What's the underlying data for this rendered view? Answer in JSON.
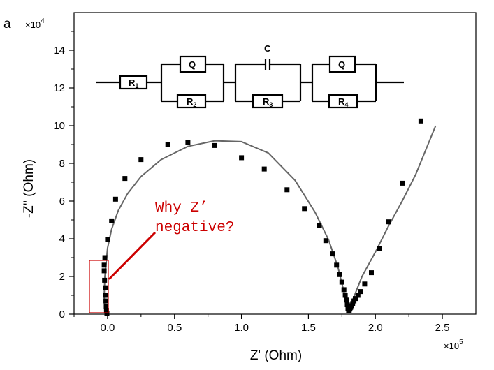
{
  "panel_label": "a",
  "annotation": {
    "line1": "Why Z’",
    "line2": "negative?",
    "color": "#cc0000"
  },
  "circuit": {
    "r1_main": "R",
    "r1_sub": "1",
    "q1": "Q",
    "r2_main": "R",
    "r2_sub": "2",
    "c": "C",
    "r3_main": "R",
    "r3_sub": "3",
    "q2": "Q",
    "r4_main": "R",
    "r4_sub": "4"
  },
  "chart_data": {
    "type": "scatter",
    "xlabel": "Z' (Ohm)",
    "ylabel": "-Z'' (Ohm)",
    "x_multiplier": "×10",
    "x_multiplier_exp": "5",
    "y_multiplier": "×10",
    "y_multiplier_exp": "4",
    "xlim": [
      -25000,
      275000
    ],
    "ylim": [
      0,
      160000
    ],
    "xticks": [
      0,
      50000,
      100000,
      150000,
      200000,
      250000
    ],
    "xtick_labels": [
      "0.0",
      "0.5",
      "1.0",
      "1.5",
      "2.0",
      "2.5"
    ],
    "yticks": [
      0,
      20000,
      40000,
      60000,
      80000,
      100000,
      120000,
      140000
    ],
    "ytick_labels": [
      "0",
      "2",
      "4",
      "6",
      "8",
      "10",
      "12",
      "14"
    ],
    "series": [
      {
        "kind": "markers",
        "color": "#000000",
        "x": [
          -500,
          -800,
          -1000,
          -1200,
          -1500,
          -1800,
          -2200,
          -2500,
          -2500,
          -2000,
          0,
          3000,
          6000,
          13000,
          25000,
          45000,
          60000,
          80000,
          100000,
          117000,
          134000,
          147000,
          158000,
          163000,
          168000,
          171000,
          173500,
          175000,
          176500,
          177500,
          178500,
          179000,
          179500,
          180000,
          180500,
          181000,
          181500,
          182000,
          183000,
          184000,
          185000,
          187000,
          189000,
          192000,
          197000,
          203000,
          210000,
          220000,
          234000
        ],
        "y": [
          300,
          2000,
          4000,
          7000,
          10000,
          14000,
          18000,
          23000,
          26000,
          30000,
          39500,
          49500,
          61000,
          72000,
          82000,
          90000,
          91000,
          89500,
          83000,
          77000,
          66000,
          56000,
          47000,
          39000,
          32000,
          26000,
          21000,
          17000,
          13000,
          10000,
          7500,
          5000,
          3000,
          2000,
          2200,
          2800,
          3600,
          4500,
          5600,
          7000,
          8300,
          10000,
          12000,
          16000,
          22000,
          35000,
          49000,
          69500,
          102500
        ]
      },
      {
        "kind": "fit-line",
        "color": "#666666",
        "x": [
          -2000,
          -2500,
          -2000,
          0,
          3000,
          8000,
          15000,
          25000,
          40000,
          60000,
          80000,
          100000,
          120000,
          140000,
          155000,
          165000,
          172000,
          176500,
          178800,
          179800,
          183000,
          190000,
          200000,
          210000,
          220000,
          230000,
          245000
        ],
        "y": [
          0,
          10000,
          20000,
          35000,
          45000,
          55000,
          64000,
          73000,
          82000,
          89000,
          92000,
          91500,
          85500,
          71000,
          54000,
          39500,
          25000,
          12000,
          4000,
          1200,
          7500,
          20000,
          33000,
          47000,
          60000,
          74000,
          100000
        ]
      }
    ]
  }
}
